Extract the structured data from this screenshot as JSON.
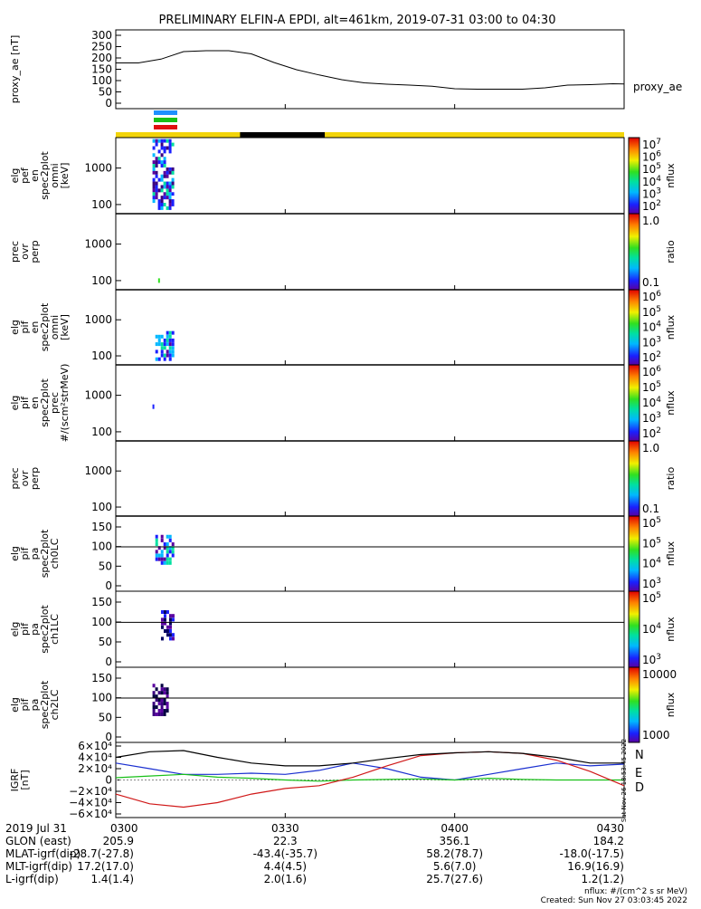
{
  "title": "PRELIMINARY ELFIN-A EPDI, alt=461km, 2019-07-31 03:00 to 04:30",
  "chart_data": [
    {
      "type": "line",
      "ylabel": "proxy_ae [nT]",
      "legend": "proxy_ae",
      "ylim": [
        0,
        300
      ],
      "yticks": [
        "300",
        "250",
        "200",
        "150",
        "100",
        "50",
        "0"
      ],
      "x_minutes": [
        0,
        4,
        8,
        12,
        16,
        20,
        24,
        28,
        32,
        36,
        40,
        44,
        48,
        52,
        56,
        60,
        64,
        68,
        72,
        76,
        80,
        84,
        88,
        90
      ],
      "values": [
        178,
        178,
        195,
        228,
        232,
        232,
        218,
        180,
        148,
        125,
        104,
        90,
        84,
        80,
        75,
        64,
        62,
        62,
        62,
        68,
        80,
        82,
        86,
        85
      ]
    },
    {
      "type": "heatmap",
      "ylabel": [
        "elg",
        "pef",
        "en",
        "spec2plot",
        "omni",
        "[keV]"
      ],
      "yticks": [
        "1000",
        "100"
      ],
      "colorbar": {
        "label": "nflux",
        "ticks": [
          "10^7",
          "10^6",
          "10^5",
          "10^4",
          "10^3",
          "10^2"
        ]
      }
    },
    {
      "type": "heatmap",
      "ylabel": [
        "prec",
        "ovr",
        "perp"
      ],
      "yticks": [
        "1000",
        "100"
      ],
      "colorbar": {
        "label": "ratio",
        "ticks": [
          "1.0",
          "0.1"
        ]
      }
    },
    {
      "type": "heatmap",
      "ylabel": [
        "elg",
        "pif",
        "en",
        "spec2plot",
        "omni",
        "[keV]"
      ],
      "yticks": [
        "1000",
        "100"
      ],
      "colorbar": {
        "label": "nflux",
        "ticks": [
          "10^6",
          "10^5",
          "10^4",
          "10^3",
          "10^2"
        ]
      }
    },
    {
      "type": "heatmap",
      "ylabel": [
        "elg",
        "pif",
        "en",
        "spec2plot",
        "prec",
        "#/(scm²strMeV)"
      ],
      "yticks": [
        "1000",
        "100"
      ],
      "colorbar": {
        "label": "nflux",
        "ticks": [
          "10^6",
          "10^5",
          "10^4",
          "10^3",
          "10^2"
        ]
      }
    },
    {
      "type": "heatmap",
      "ylabel": [
        "prec",
        "ovr",
        "perp"
      ],
      "yticks": [
        "1000",
        "100"
      ],
      "colorbar": {
        "label": "ratio",
        "ticks": [
          "1.0",
          "0.1"
        ]
      }
    },
    {
      "type": "heatmap",
      "ylabel": [
        "elg",
        "pif",
        "pa",
        "spec2plot",
        "ch0LC"
      ],
      "yticks": [
        "150",
        "100",
        "50",
        "0"
      ],
      "colorbar": {
        "label": "nflux",
        "ticks": [
          "10^5",
          "10^5",
          "10^4",
          "10^3"
        ]
      }
    },
    {
      "type": "heatmap",
      "ylabel": [
        "elg",
        "pif",
        "pa",
        "spec2plot",
        "ch1LC"
      ],
      "yticks": [
        "150",
        "100",
        "50",
        "0"
      ],
      "colorbar": {
        "label": "nflux",
        "ticks": [
          "10^5",
          "10^4",
          "10^3"
        ]
      }
    },
    {
      "type": "heatmap",
      "ylabel": [
        "elg",
        "pif",
        "pa",
        "spec2plot",
        "ch2LC"
      ],
      "yticks": [
        "150",
        "100",
        "50",
        "0"
      ],
      "colorbar": {
        "label": "nflux",
        "ticks": [
          "10000",
          "1000"
        ]
      }
    },
    {
      "type": "line",
      "ylabel": [
        "IGRF",
        "[nT]"
      ],
      "ylim": [
        -60000,
        60000
      ],
      "yticks": [
        "6×10⁴",
        "4×10⁴",
        "2×10⁴",
        "0",
        "−2×10⁴",
        "−4×10⁴",
        "−6×10⁴"
      ],
      "x_minutes": [
        0,
        6,
        12,
        18,
        24,
        30,
        36,
        42,
        48,
        54,
        60,
        66,
        72,
        78,
        84,
        90
      ],
      "series": [
        {
          "name": "N",
          "color": "#1a2fd0",
          "values": [
            30000,
            20000,
            10000,
            10000,
            12000,
            10000,
            17000,
            30000,
            20000,
            5000,
            0,
            10000,
            20000,
            30000,
            25000,
            28000
          ]
        },
        {
          "name": "E",
          "color": "#18c018",
          "values": [
            4000,
            7000,
            10000,
            5000,
            3000,
            0,
            -2000,
            0,
            1000,
            2000,
            0,
            3000,
            1000,
            0,
            0,
            0
          ]
        },
        {
          "name": "D",
          "color": "#d01818",
          "values": [
            -25000,
            -42000,
            -48000,
            -40000,
            -25000,
            -15000,
            -10000,
            5000,
            25000,
            43000,
            48000,
            50000,
            47000,
            35000,
            15000,
            -10000
          ]
        },
        {
          "name": "",
          "color": "#000000",
          "values": [
            40000,
            50000,
            52000,
            40000,
            30000,
            25000,
            25000,
            30000,
            38000,
            45000,
            48000,
            50000,
            47000,
            40000,
            30000,
            30000
          ]
        }
      ]
    }
  ],
  "time_axis": {
    "labels": [
      "0300",
      "0330",
      "0400",
      "0430"
    ],
    "date": "2019 Jul 31"
  },
  "ephemeris": [
    {
      "label": "GLON (east)",
      "values": [
        "205.9",
        "22.3",
        "356.1",
        "184.2"
      ]
    },
    {
      "label": "MLAT-igrf(dip)",
      "values": [
        "-28.7(-27.8)",
        "-43.4(-35.7)",
        "58.2(78.7)",
        "-18.0(-17.5)"
      ]
    },
    {
      "label": "MLT-igrf(dip)",
      "values": [
        "17.2(17.0)",
        "4.4(4.5)",
        "5.6(7.0)",
        "16.9(16.9)"
      ]
    },
    {
      "label": "L-igrf(dip)",
      "values": [
        "1.4(1.4)",
        "2.0(1.6)",
        "25.7(27.6)",
        "1.2(1.2)"
      ]
    }
  ],
  "footer": {
    "units": "nflux: #/(cm^2 s sr MeV)",
    "created": "Created: Sun Nov 27 03:03:45 2022",
    "side_stamp": "Sat Nov 26 18:53:45 2022"
  },
  "colors": {
    "orbit_bar_day": "#f2d40a",
    "orbit_bar_night": "#000000"
  }
}
